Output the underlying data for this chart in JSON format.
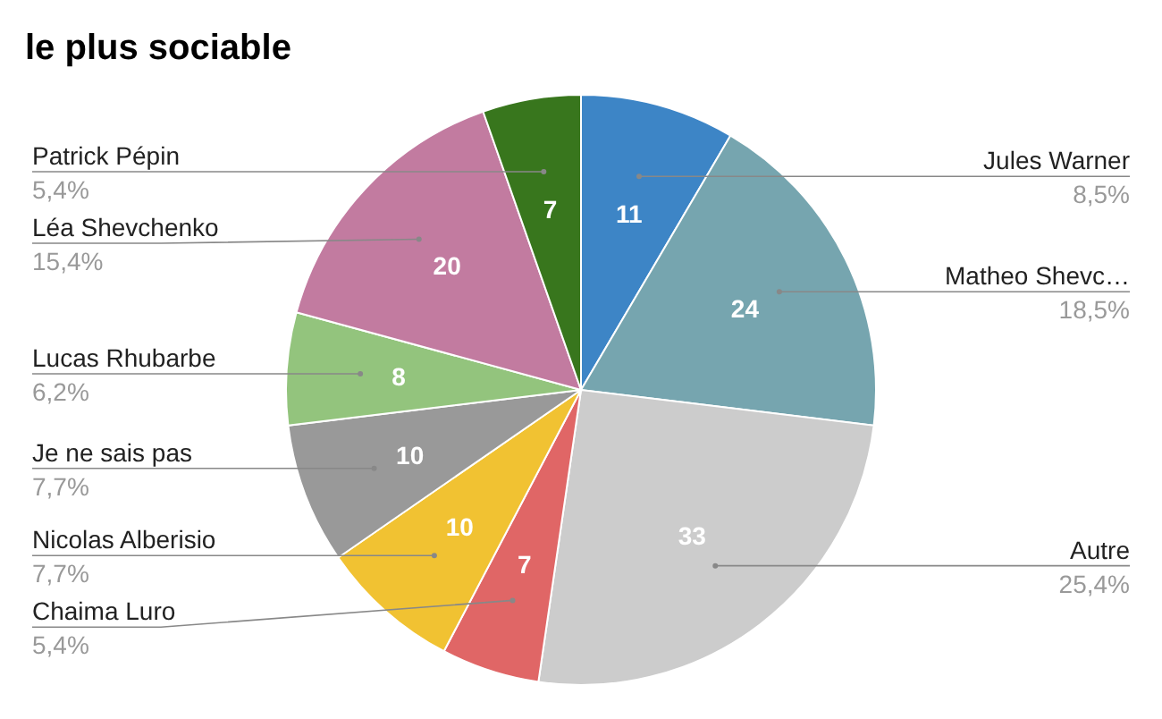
{
  "chart_data": {
    "type": "pie",
    "title": "le plus sociable",
    "categories": [
      "Jules Warner",
      "Matheo Shevc…",
      "Autre",
      "Chaima Luro",
      "Nicolas Alberisio",
      "Je ne sais pas",
      "Lucas Rhubarbe",
      "Léa Shevchenko",
      "Patrick Pépin"
    ],
    "values": [
      11,
      24,
      33,
      7,
      10,
      10,
      8,
      20,
      7
    ],
    "colors": [
      "#3d85c6",
      "#76a5af",
      "#cccccc",
      "#e06666",
      "#f1c232",
      "#999999",
      "#93c47d",
      "#c27ba0",
      "#38761d"
    ],
    "data_labels": true,
    "annotations": [
      "8,5%",
      "18,5%",
      "25,4%",
      "5,4%",
      "7,7%",
      "7,7%",
      "6,2%",
      "15,4%",
      "5,4%"
    ]
  }
}
